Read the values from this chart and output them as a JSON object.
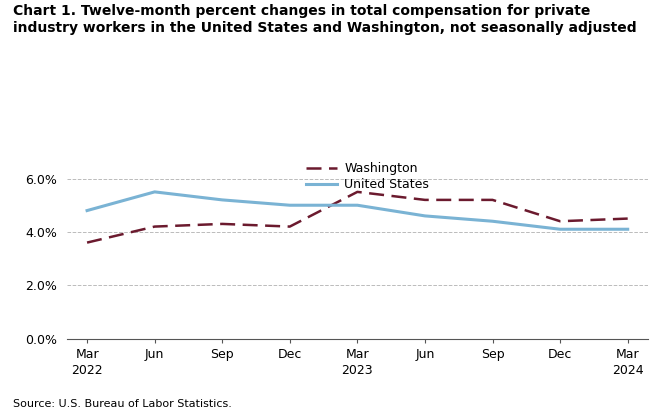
{
  "title": "Chart 1. Twelve-month percent changes in total compensation for private\nindustry workers in the United States and Washington, not seasonally adjusted",
  "x_labels_top": [
    "Mar",
    "Jun",
    "Sep",
    "Dec",
    "Mar",
    "Jun",
    "Sep",
    "Dec",
    "Mar"
  ],
  "x_labels_bot": [
    "2022",
    "",
    "",
    "",
    "2023",
    "",
    "",
    "",
    "2024"
  ],
  "washington_values": [
    3.6,
    4.2,
    4.3,
    4.2,
    5.5,
    5.2,
    5.2,
    4.4,
    4.5
  ],
  "us_values": [
    4.8,
    5.5,
    5.2,
    5.0,
    5.0,
    4.6,
    4.4,
    4.1,
    4.1
  ],
  "washington_color": "#6b1a2e",
  "us_color": "#7ab3d4",
  "ylim": [
    0.0,
    6.5
  ],
  "yticks": [
    0.0,
    2.0,
    4.0,
    6.0
  ],
  "ytick_labels": [
    "0.0%",
    "2.0%",
    "4.0%",
    "6.0%"
  ],
  "grid_color": "#aaaaaa",
  "source_text": "Source: U.S. Bureau of Labor Statistics.",
  "legend_washington": "Washington",
  "legend_us": "United States",
  "background_color": "#ffffff"
}
